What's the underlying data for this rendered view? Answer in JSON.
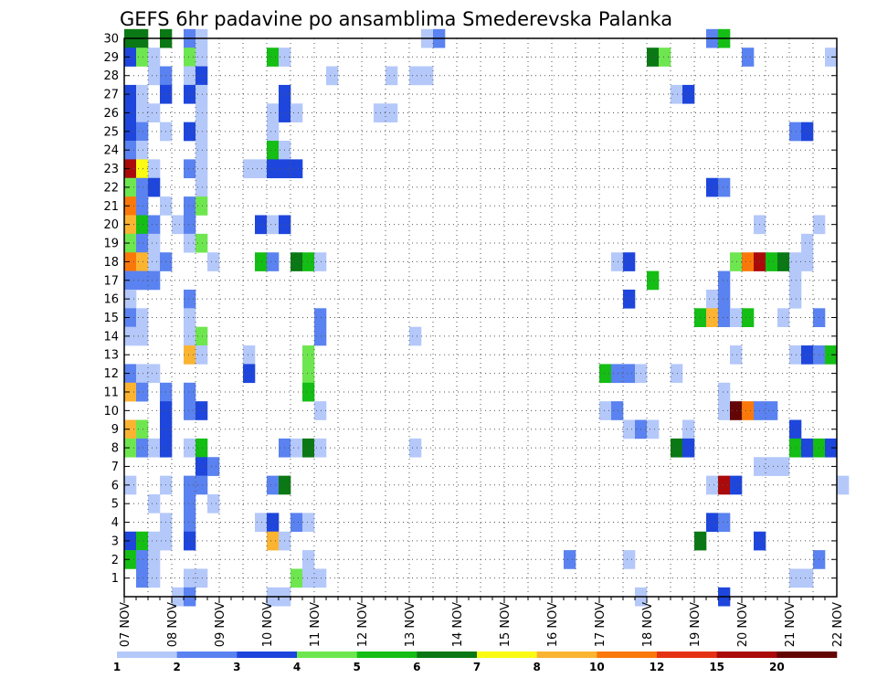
{
  "chart_data": {
    "type": "heatmap",
    "title": "GEFS 6hr padavine po ansamblima Smederevska Palanka",
    "xlabel": "",
    "ylabel": "",
    "x_ticks": [
      {
        "day": 7,
        "label": "07 NOV"
      },
      {
        "day": 8,
        "label": "08 NOV"
      },
      {
        "day": 9,
        "label": "09 NOV"
      },
      {
        "day": 10,
        "label": "10 NOV"
      },
      {
        "day": 11,
        "label": "11 NOV"
      },
      {
        "day": 12,
        "label": "12 NOV"
      },
      {
        "day": 13,
        "label": "13 NOV"
      },
      {
        "day": 14,
        "label": "14 NOV"
      },
      {
        "day": 15,
        "label": "15 NOV"
      },
      {
        "day": 16,
        "label": "16 NOV"
      },
      {
        "day": 17,
        "label": "17 NOV"
      },
      {
        "day": 18,
        "label": "18 NOV"
      },
      {
        "day": 19,
        "label": "19 NOV"
      },
      {
        "day": 20,
        "label": "20 NOV"
      },
      {
        "day": 21,
        "label": "21 NOV"
      },
      {
        "day": 22,
        "label": "22 NOV"
      }
    ],
    "x_range_days": [
      7,
      22
    ],
    "y_ticks": [
      "1",
      "2",
      "3",
      "4",
      "5",
      "6",
      "7",
      "8",
      "9",
      "10",
      "11",
      "12",
      "13",
      "14",
      "15",
      "16",
      "17",
      "18",
      "19",
      "20",
      "21",
      "22",
      "23",
      "24",
      "25",
      "26",
      "27",
      "28",
      "29",
      "30"
    ],
    "y_range": [
      0,
      30
    ],
    "grid": true,
    "colorbar": {
      "labels": [
        "1",
        "2",
        "3",
        "4",
        "5",
        "6",
        "7",
        "8",
        "10",
        "12",
        "15",
        "20"
      ],
      "colors": [
        "#b4c8fa",
        "#5a82f0",
        "#1e46dc",
        "#6ee650",
        "#14be14",
        "#0a7814",
        "#fafa14",
        "#fab432",
        "#fa780a",
        "#e63214",
        "#aa0a0a",
        "#640505"
      ]
    },
    "cells_format": "[member, step (6h from 07 NOV 00Z), colour class 1-12]",
    "cells": [
      [
        30,
        0,
        6
      ],
      [
        30,
        1,
        6
      ],
      [
        30,
        3,
        6
      ],
      [
        30,
        5,
        2
      ],
      [
        30,
        6,
        1
      ],
      [
        30,
        25,
        1
      ],
      [
        30,
        26,
        2
      ],
      [
        30,
        49,
        2
      ],
      [
        30,
        50,
        5
      ],
      [
        29,
        0,
        3
      ],
      [
        29,
        1,
        4
      ],
      [
        29,
        2,
        1
      ],
      [
        29,
        5,
        4
      ],
      [
        29,
        6,
        1
      ],
      [
        29,
        12,
        5
      ],
      [
        29,
        13,
        1
      ],
      [
        29,
        44,
        6
      ],
      [
        29,
        45,
        4
      ],
      [
        29,
        52,
        2
      ],
      [
        29,
        59,
        1
      ],
      [
        28,
        2,
        1
      ],
      [
        28,
        3,
        2
      ],
      [
        28,
        5,
        1
      ],
      [
        28,
        6,
        3
      ],
      [
        28,
        17,
        1
      ],
      [
        28,
        22,
        1
      ],
      [
        28,
        24,
        1
      ],
      [
        28,
        25,
        1
      ],
      [
        27,
        0,
        3
      ],
      [
        27,
        1,
        1
      ],
      [
        27,
        3,
        3
      ],
      [
        27,
        5,
        3
      ],
      [
        27,
        6,
        1
      ],
      [
        27,
        13,
        3
      ],
      [
        27,
        46,
        1
      ],
      [
        27,
        47,
        3
      ],
      [
        26,
        0,
        3
      ],
      [
        26,
        1,
        1
      ],
      [
        26,
        2,
        1
      ],
      [
        26,
        6,
        1
      ],
      [
        26,
        12,
        1
      ],
      [
        26,
        13,
        3
      ],
      [
        26,
        14,
        1
      ],
      [
        26,
        21,
        1
      ],
      [
        26,
        22,
        1
      ],
      [
        25,
        0,
        3
      ],
      [
        25,
        1,
        2
      ],
      [
        25,
        3,
        1
      ],
      [
        25,
        5,
        3
      ],
      [
        25,
        6,
        1
      ],
      [
        25,
        12,
        1
      ],
      [
        25,
        56,
        2
      ],
      [
        25,
        57,
        3
      ],
      [
        24,
        0,
        2
      ],
      [
        24,
        1,
        1
      ],
      [
        24,
        6,
        1
      ],
      [
        24,
        12,
        5
      ],
      [
        24,
        13,
        1
      ],
      [
        23,
        0,
        11
      ],
      [
        23,
        1,
        7
      ],
      [
        23,
        2,
        1
      ],
      [
        23,
        5,
        2
      ],
      [
        23,
        6,
        1
      ],
      [
        23,
        10,
        1
      ],
      [
        23,
        11,
        1
      ],
      [
        23,
        12,
        3
      ],
      [
        23,
        13,
        3
      ],
      [
        23,
        14,
        3
      ],
      [
        22,
        0,
        4
      ],
      [
        22,
        1,
        2
      ],
      [
        22,
        2,
        3
      ],
      [
        22,
        6,
        1
      ],
      [
        22,
        49,
        3
      ],
      [
        22,
        50,
        2
      ],
      [
        21,
        0,
        9
      ],
      [
        21,
        1,
        2
      ],
      [
        21,
        3,
        1
      ],
      [
        21,
        5,
        2
      ],
      [
        21,
        6,
        4
      ],
      [
        20,
        0,
        8
      ],
      [
        20,
        1,
        5
      ],
      [
        20,
        2,
        2
      ],
      [
        20,
        4,
        1
      ],
      [
        20,
        5,
        2
      ],
      [
        20,
        11,
        3
      ],
      [
        20,
        12,
        1
      ],
      [
        20,
        13,
        3
      ],
      [
        20,
        53,
        1
      ],
      [
        20,
        58,
        1
      ],
      [
        19,
        0,
        4
      ],
      [
        19,
        1,
        2
      ],
      [
        19,
        2,
        1
      ],
      [
        19,
        5,
        1
      ],
      [
        19,
        6,
        4
      ],
      [
        19,
        57,
        1
      ],
      [
        18,
        0,
        9
      ],
      [
        18,
        1,
        8
      ],
      [
        18,
        2,
        1
      ],
      [
        18,
        3,
        2
      ],
      [
        18,
        7,
        1
      ],
      [
        18,
        11,
        5
      ],
      [
        18,
        12,
        2
      ],
      [
        18,
        14,
        6
      ],
      [
        18,
        15,
        5
      ],
      [
        18,
        16,
        1
      ],
      [
        18,
        41,
        1
      ],
      [
        18,
        42,
        3
      ],
      [
        18,
        51,
        4
      ],
      [
        18,
        52,
        9
      ],
      [
        18,
        53,
        11
      ],
      [
        18,
        54,
        5
      ],
      [
        18,
        55,
        6
      ],
      [
        18,
        56,
        1
      ],
      [
        18,
        57,
        1
      ],
      [
        17,
        0,
        2
      ],
      [
        17,
        1,
        2
      ],
      [
        17,
        2,
        2
      ],
      [
        17,
        44,
        5
      ],
      [
        17,
        50,
        2
      ],
      [
        17,
        56,
        1
      ],
      [
        16,
        0,
        1
      ],
      [
        16,
        5,
        2
      ],
      [
        16,
        42,
        3
      ],
      [
        16,
        49,
        1
      ],
      [
        16,
        50,
        2
      ],
      [
        16,
        56,
        1
      ],
      [
        15,
        0,
        2
      ],
      [
        15,
        1,
        1
      ],
      [
        15,
        5,
        1
      ],
      [
        15,
        16,
        2
      ],
      [
        15,
        48,
        5
      ],
      [
        15,
        49,
        8
      ],
      [
        15,
        50,
        2
      ],
      [
        15,
        51,
        1
      ],
      [
        15,
        52,
        5
      ],
      [
        15,
        55,
        1
      ],
      [
        15,
        58,
        2
      ],
      [
        14,
        0,
        1
      ],
      [
        14,
        1,
        1
      ],
      [
        14,
        5,
        1
      ],
      [
        14,
        6,
        4
      ],
      [
        14,
        16,
        2
      ],
      [
        14,
        24,
        1
      ],
      [
        13,
        5,
        8
      ],
      [
        13,
        6,
        1
      ],
      [
        13,
        10,
        1
      ],
      [
        13,
        15,
        4
      ],
      [
        13,
        51,
        1
      ],
      [
        13,
        56,
        1
      ],
      [
        13,
        57,
        3
      ],
      [
        13,
        58,
        2
      ],
      [
        13,
        59,
        5
      ],
      [
        12,
        0,
        2
      ],
      [
        12,
        1,
        1
      ],
      [
        12,
        2,
        1
      ],
      [
        12,
        10,
        3
      ],
      [
        12,
        15,
        4
      ],
      [
        12,
        40,
        5
      ],
      [
        12,
        41,
        2
      ],
      [
        12,
        42,
        2
      ],
      [
        12,
        43,
        1
      ],
      [
        12,
        46,
        1
      ],
      [
        11,
        0,
        8
      ],
      [
        11,
        1,
        2
      ],
      [
        11,
        3,
        2
      ],
      [
        11,
        5,
        2
      ],
      [
        11,
        15,
        5
      ],
      [
        11,
        50,
        1
      ],
      [
        10,
        3,
        3
      ],
      [
        10,
        5,
        2
      ],
      [
        10,
        6,
        3
      ],
      [
        10,
        16,
        1
      ],
      [
        10,
        40,
        1
      ],
      [
        10,
        41,
        2
      ],
      [
        10,
        50,
        1
      ],
      [
        10,
        51,
        12
      ],
      [
        10,
        52,
        9
      ],
      [
        10,
        53,
        2
      ],
      [
        10,
        54,
        2
      ],
      [
        9,
        0,
        8
      ],
      [
        9,
        1,
        4
      ],
      [
        9,
        3,
        3
      ],
      [
        9,
        42,
        1
      ],
      [
        9,
        43,
        2
      ],
      [
        9,
        44,
        1
      ],
      [
        9,
        47,
        1
      ],
      [
        9,
        56,
        3
      ],
      [
        8,
        0,
        4
      ],
      [
        8,
        1,
        2
      ],
      [
        8,
        2,
        1
      ],
      [
        8,
        3,
        3
      ],
      [
        8,
        5,
        1
      ],
      [
        8,
        6,
        5
      ],
      [
        8,
        13,
        2
      ],
      [
        8,
        14,
        1
      ],
      [
        8,
        15,
        6
      ],
      [
        8,
        16,
        1
      ],
      [
        8,
        24,
        1
      ],
      [
        8,
        46,
        6
      ],
      [
        8,
        47,
        3
      ],
      [
        8,
        56,
        5
      ],
      [
        8,
        57,
        3
      ],
      [
        8,
        58,
        5
      ],
      [
        8,
        59,
        3
      ],
      [
        7,
        6,
        3
      ],
      [
        7,
        7,
        2
      ],
      [
        7,
        53,
        1
      ],
      [
        7,
        54,
        1
      ],
      [
        7,
        55,
        1
      ],
      [
        6,
        0,
        1
      ],
      [
        6,
        3,
        1
      ],
      [
        6,
        5,
        2
      ],
      [
        6,
        6,
        2
      ],
      [
        6,
        12,
        2
      ],
      [
        6,
        13,
        6
      ],
      [
        6,
        49,
        1
      ],
      [
        6,
        50,
        11
      ],
      [
        6,
        51,
        3
      ],
      [
        6,
        60,
        1
      ],
      [
        5,
        2,
        1
      ],
      [
        5,
        5,
        2
      ],
      [
        5,
        7,
        1
      ],
      [
        4,
        3,
        1
      ],
      [
        4,
        5,
        2
      ],
      [
        4,
        11,
        1
      ],
      [
        4,
        12,
        3
      ],
      [
        4,
        14,
        2
      ],
      [
        4,
        15,
        1
      ],
      [
        4,
        49,
        3
      ],
      [
        4,
        50,
        2
      ],
      [
        3,
        0,
        3
      ],
      [
        3,
        1,
        5
      ],
      [
        3,
        2,
        1
      ],
      [
        3,
        3,
        1
      ],
      [
        3,
        5,
        3
      ],
      [
        3,
        12,
        8
      ],
      [
        3,
        13,
        1
      ],
      [
        3,
        48,
        6
      ],
      [
        3,
        53,
        3
      ],
      [
        2,
        0,
        5
      ],
      [
        2,
        1,
        2
      ],
      [
        2,
        2,
        1
      ],
      [
        2,
        15,
        1
      ],
      [
        2,
        37,
        2
      ],
      [
        2,
        42,
        1
      ],
      [
        2,
        58,
        2
      ],
      [
        1,
        1,
        2
      ],
      [
        1,
        2,
        1
      ],
      [
        1,
        5,
        1
      ],
      [
        1,
        6,
        1
      ],
      [
        1,
        14,
        4
      ],
      [
        1,
        15,
        1
      ],
      [
        1,
        16,
        1
      ],
      [
        1,
        56,
        1
      ],
      [
        1,
        57,
        1
      ],
      [
        0,
        4,
        1
      ],
      [
        0,
        5,
        2
      ],
      [
        0,
        12,
        1
      ],
      [
        0,
        13,
        1
      ],
      [
        0,
        43,
        1
      ],
      [
        0,
        50,
        3
      ]
    ]
  }
}
